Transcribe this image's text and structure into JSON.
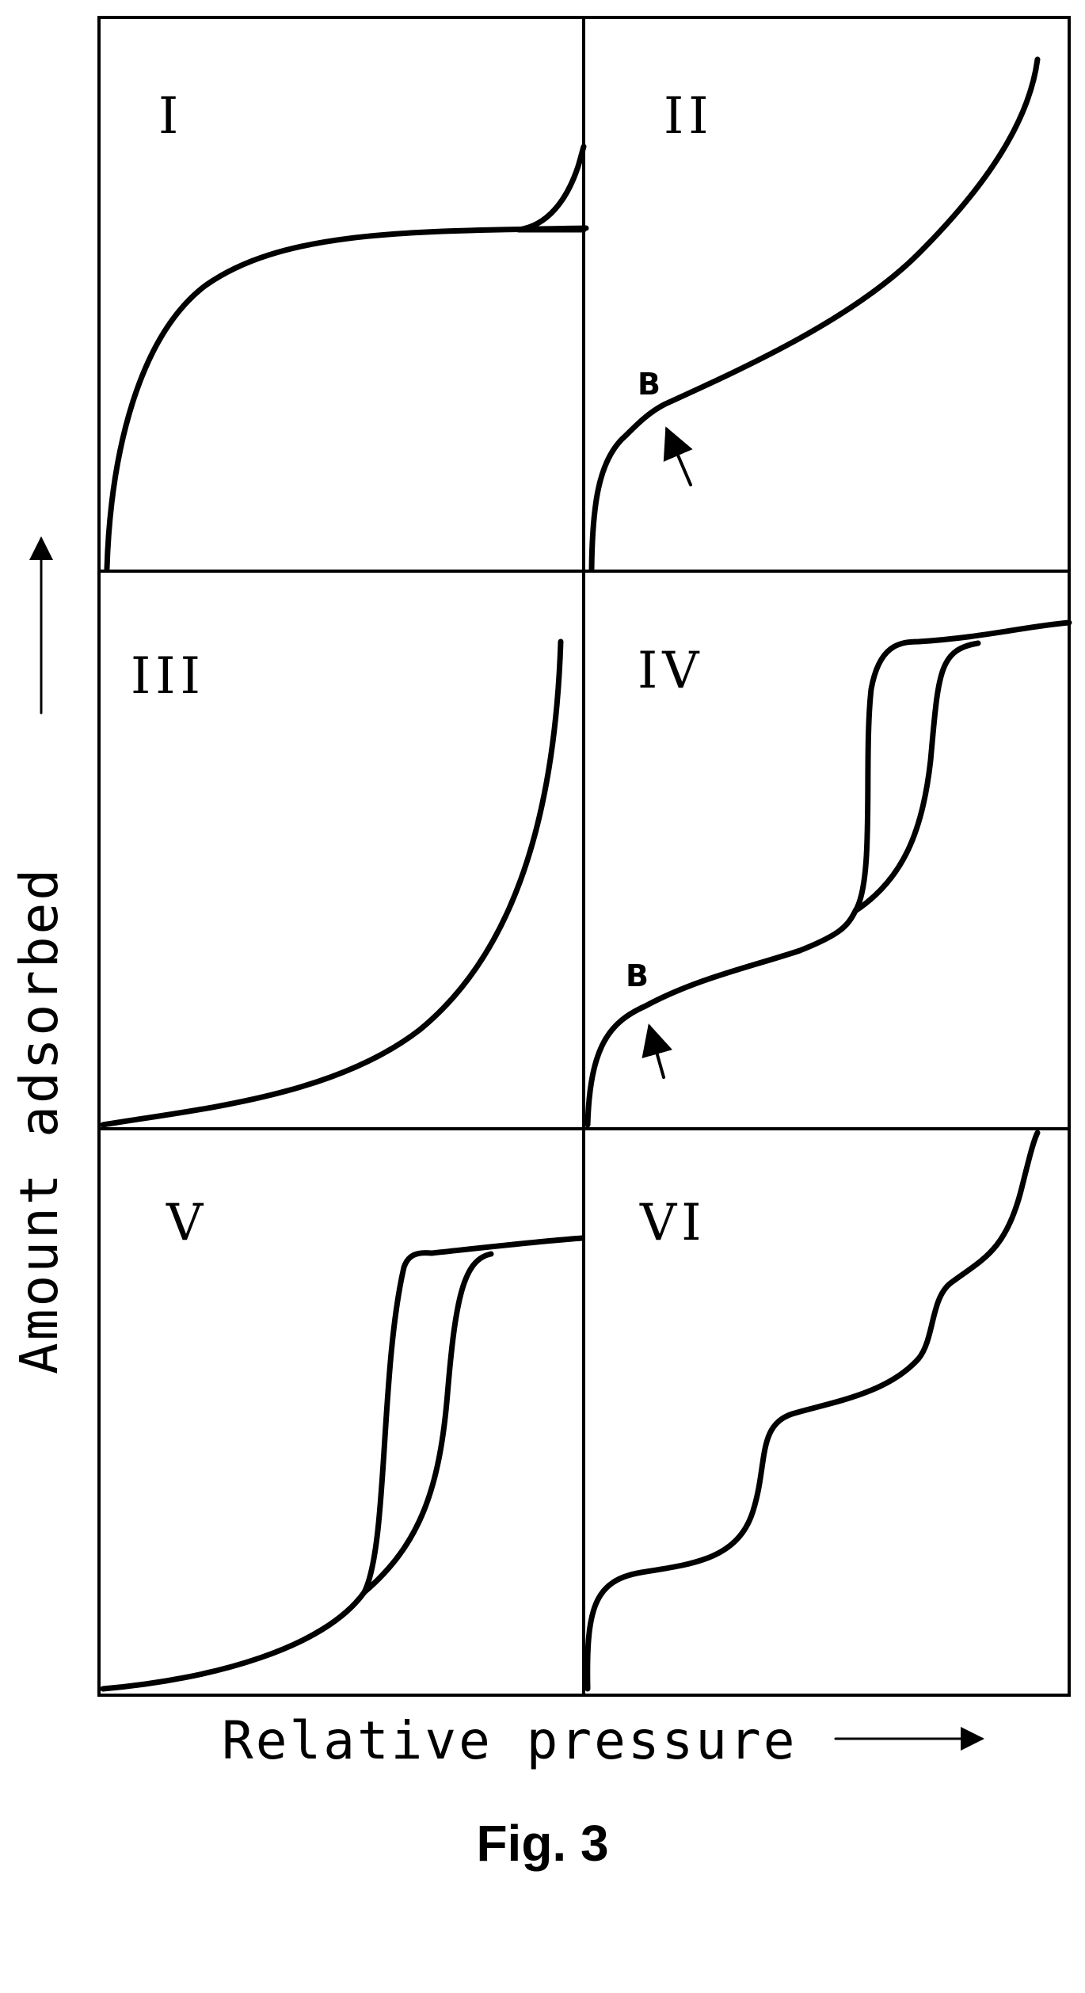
{
  "figure": {
    "caption": "Fig. 3",
    "x_axis_label": "Relative pressure",
    "y_axis_label": "Amount adsorbed",
    "panels": [
      {
        "id": "I",
        "label": "I"
      },
      {
        "id": "II",
        "label": "II",
        "marker": "B"
      },
      {
        "id": "III",
        "label": "III"
      },
      {
        "id": "IV",
        "label": "IV",
        "marker": "B"
      },
      {
        "id": "V",
        "label": "V"
      },
      {
        "id": "VI",
        "label": "VI"
      }
    ]
  }
}
